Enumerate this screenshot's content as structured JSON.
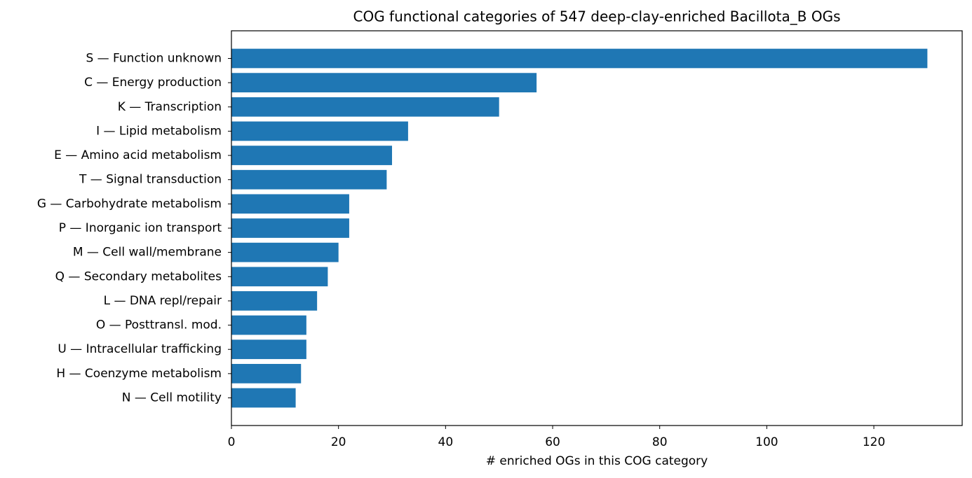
{
  "chart_data": {
    "type": "barh",
    "title": "COG functional categories of 547 deep-clay-enriched Bacillota_B OGs",
    "x_label": "# enriched OGs in this COG category",
    "categories": [
      "S — Function unknown",
      "C — Energy production",
      "K — Transcription",
      "I — Lipid metabolism",
      "E — Amino acid metabolism",
      "T — Signal transduction",
      "G — Carbohydrate metabolism",
      "P — Inorganic ion transport",
      "M — Cell wall/membrane",
      "Q — Secondary metabolites",
      "L — DNA repl/repair",
      "O — Posttransl. mod.",
      "U — Intracellular trafficking",
      "H — Coenzyme metabolism",
      "N — Cell motility"
    ],
    "values": [
      130,
      57,
      50,
      33,
      30,
      29,
      22,
      22,
      20,
      18,
      16,
      14,
      14,
      13,
      12
    ],
    "color": "#1f77b4",
    "xlim": [
      0,
      136.5
    ],
    "xticks": [
      0,
      20,
      40,
      60,
      80,
      100,
      120
    ]
  }
}
